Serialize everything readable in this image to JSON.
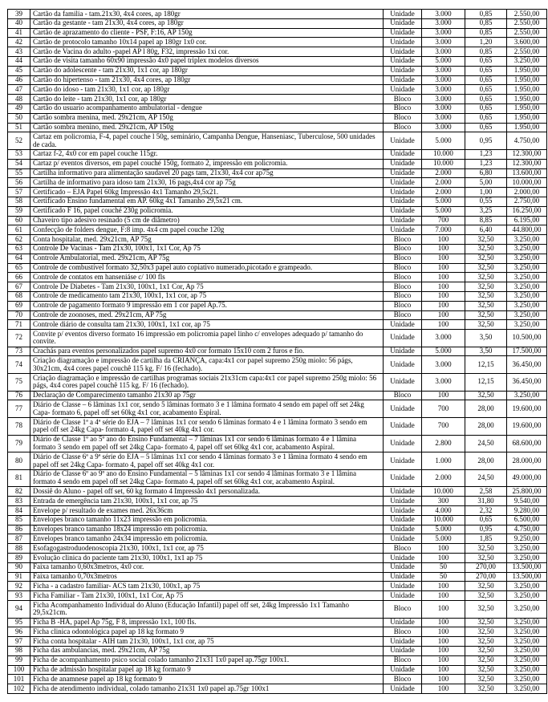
{
  "rows": [
    [
      "39",
      "Cartão da familia -  tam.21x30, 4x4 cores, ap 180gr",
      "Unidade",
      "3.000",
      "0,85",
      "2.550,00"
    ],
    [
      "40",
      "Cartão da gestante  -  tam 21x30, 4x4 cores, ap 180gr",
      "Unidade",
      "3.000",
      "0,85",
      "2.550,00"
    ],
    [
      "41",
      "Cartão de aprazamento do cliente - PSF, F:16, AP 150g",
      "Unidade",
      "3.000",
      "0,85",
      "2.550,00"
    ],
    [
      "42",
      "Cartão de protocolo tamanho 10x14 papel ap 180gr 1x0 cor.",
      "Unidade",
      "3.000",
      "1,20",
      "3.600,00"
    ],
    [
      "43",
      "Cartão de Vacina do adulto -papel AP l 80g, F32, impressão 1xi cor.",
      "Unidade",
      "3.000",
      "0,85",
      "2.550,00"
    ],
    [
      "44",
      "Cartão de visita tamanho 60x90 impressão 4x0 papel triplex  modelos diversos",
      "Unidade",
      "5.000",
      "0,65",
      "3.250,00"
    ],
    [
      "45",
      "Cartão do adolescente -  tam 21x30, 1x1 cor, ap 180gr",
      "Unidade",
      "3.000",
      "0,65",
      "1.950,00"
    ],
    [
      "46",
      "Cartão do hipertenso  -  tam 21x30, 4x4 cores, ap 180gr",
      "Unidade",
      "3.000",
      "0,65",
      "1.950,00"
    ],
    [
      "47",
      "Cartão do idoso  -  tam 21x30, 1x1 cor, ap 180gr",
      "Unidade",
      "3.000",
      "0,65",
      "1.950,00"
    ],
    [
      "48",
      "Cartão do leite  -  tam 21x30, 1x1 cor, ap 180gr",
      "Bloco",
      "3.000",
      "0,65",
      "1.950,00"
    ],
    [
      "49",
      "Cartão do usuario acompanhamento ambulatorial - dengue",
      "Bloco",
      "3.000",
      "0,65",
      "1.950,00"
    ],
    [
      "50",
      "Cartão sombra menina, med. 29x21cm, AP 150g",
      "Bloco",
      "3.000",
      "0,65",
      "1.950,00"
    ],
    [
      "51",
      "Cartão sombra menino, med. 29x21cm, AP 150g",
      "Bloco",
      "3.000",
      "0,65",
      "1.950,00"
    ],
    [
      "52",
      "Cartaz em policromia, F-4, papel couche l 50g, seminário, Campanha Dengue, Hanseniasc, Tuberculose, 500 unidades de cada.",
      "Unidade",
      "5.000",
      "0,95",
      "4.750,00"
    ],
    [
      "53",
      "Cartaz f-2, 4x0 cor em papel couche 115gr.",
      "Unidade",
      "10.000",
      "1,23",
      "12.300,00"
    ],
    [
      "54",
      "Cartaz p/ eventos diversos, em papel couché 150g, formato 2, impressão em policromia.",
      "Unidade",
      "10.000",
      "1,23",
      "12.300,00"
    ],
    [
      "55",
      "Cartilha  informativo para alimentação saudavel 20 pags tam, 21x30, 4x4 cor ap75g",
      "Unidade",
      "2.000",
      "6,80",
      "13.600,00"
    ],
    [
      "56",
      "Cartilha de informativo para idoso tam 21x30, 16 pags,4x4 cor ap 75g",
      "Unidade",
      "2.000",
      "5,00",
      "10.000,00"
    ],
    [
      "57",
      "Certificado – EJA Papel 60kg Impressão 4x1 Tamanho 29,5x21.",
      "Unidade",
      "2.000",
      "1,00",
      "2.000,00"
    ],
    [
      "58",
      "Certificado Ensino fundamental em AP. 60kg 4x1 Tamanho 29,5x21 cm.",
      "Unidade",
      "5.000",
      "0,55",
      "2.750,00"
    ],
    [
      "59",
      "Certificado F 16, papel couché 230g policromia.",
      "Unidade",
      "5.000",
      "3,25",
      "16.250,00"
    ],
    [
      "60",
      "Chaveiro tipo adesivo resinado (5 cm de diâmetro)",
      "Unidade",
      "700",
      "8,85",
      "6.195,00"
    ],
    [
      "61",
      "Confecção de folders dengue, F:8 imp. 4x4 cm papel couche 120g",
      "Unidade",
      "7.000",
      "6,40",
      "44.800,00"
    ],
    [
      "62",
      "Conta hospitalar, med. 29x21cm, AP 75g",
      "Bloco",
      "100",
      "32,50",
      "3.250,00"
    ],
    [
      "63",
      "Controle   De  Vacinas - Tam 21x30, 100x1, 1x1 Cor, Ap 75",
      "Bloco",
      "100",
      "32,50",
      "3.250,00"
    ],
    [
      "64",
      "Controle Ambulatorial, med. 29x21cm, AP 75g",
      "Bloco",
      "100",
      "32,50",
      "3.250,00"
    ],
    [
      "65",
      "Controle de combustível formato 32,50x3  papel auto copiativo numerado,picotado e grampeado.",
      "Bloco",
      "100",
      "32,50",
      "3.250,00"
    ],
    [
      "66",
      "Controle de contatos em hanseniáse c/ 100 fls",
      "Bloco",
      "100",
      "32,50",
      "3.250,00"
    ],
    [
      "67",
      "Controle De Diabetes  -  Tam 21x30, 100x1, 1x1 Cor, Ap 75",
      "Bloco",
      "100",
      "32,50",
      "3.250,00"
    ],
    [
      "68",
      "Controle de medicamento tam 21x30, 100x1, 1x1 cor, ap 75",
      "Bloco",
      "100",
      "32,50",
      "3.250,00"
    ],
    [
      "69",
      "Controle de pagamento formato 9 impressão em 1 cor papel Ap.75.",
      "Bloco",
      "100",
      "32,50",
      "3.250,00"
    ],
    [
      "70",
      "Controle de zoonoses, med. 29x21cm, AP 75g",
      "Bloco",
      "100",
      "32,50",
      "3.250,00"
    ],
    [
      "71",
      "Controle diário de consulta tam 21x30, 100x1, 1x1 cor, ap 75",
      "Unidade",
      "100",
      "32,50",
      "3.250,00"
    ],
    [
      "72",
      "Convite p/ eventos diverso formato 16 impressão em policromia papel linho c/ envelopes adequado p/ tamanho do convite.",
      "Unidade",
      "3.000",
      "3,50",
      "10.500,00"
    ],
    [
      "73",
      "Crachás para eventos personalizados papel supremo 4x0 cor formato 15x10 com 2 furos e fio.",
      "Unidade",
      "5.000",
      "3,50",
      "17.500,00"
    ],
    [
      "74",
      "Criação diagramação e impressão  de cartilha da CRIANÇA, capa:4x1 cor papel supremo 250g miolo: 56 págs, 30x21cm, 4x4 cores papel couchê 115 kg. F/ 16 (fechado).",
      "Unidade",
      "3.000",
      "12,15",
      "36.450,00"
    ],
    [
      "75",
      "Criação diagramação e impressão de cartilhas  programas sociais 21x31cm capa:4x1 cor papel supremo 250g miolo: 56 págs, 4x4 cores papel couchê 115 kg. F/ 16 (fechado).",
      "Unidade",
      "3.000",
      "12,15",
      "36.450,00"
    ],
    [
      "76",
      "Declaração de Comparecimento tamanho 21x30 ap 75gr",
      "Bloco",
      "100",
      "32,50",
      "3.250,00"
    ],
    [
      "77",
      "Diário de Classe – 6 lâminas 1x1 cor, sendo 5 lâminas formato 3 e 1 lâmina formato 4 sendo em papel off set 24kg Capa- formato 6, papel off set 60kg 4x1 cor, acabamento Espiral.",
      "Unidade",
      "700",
      "28,00",
      "19.600,00"
    ],
    [
      "78",
      "Diário de Classe 1ª a 4ª série do EJA – 7 lâminas 1x1 cor sendo 6 lâminas formato 4 e 1 lâmina formato 3 sendo em papel off set 24kg Capa- formato 4, papel off set 40kg 4x1 cor.",
      "Unidade",
      "700",
      "28,00",
      "19.600,00"
    ],
    [
      "79",
      "Diário de Classe 1º ao 5º ano do Ensino Fundamental – 7 lâminas 1x1 cor sendo 6 lâminas formato 4 e 1 lâmina formato 3 sendo em papel off set 24kg Capa- formato 4, papel off set 60kg 4x1 cor, acabamento Aspiral.",
      "Unidade",
      "2.800",
      "24,50",
      "68.600,00"
    ],
    [
      "80",
      "Diário de Classe 6ª a 9ª série do EJA – 5 lâminas 1x1 cor sendo 4 lâminas formato 3 e 1 lâmina formato 4 sendo em papel off set 24kg Capa- formato 4, papel off set 40kg 4x1 cor.",
      "Unidade",
      "1.000",
      "28,00",
      "28.000,00"
    ],
    [
      "81",
      "Diário de Classe 6º ao 9º ano do Ensino Fundamental – 5 lâminas 1x1 cor sendo 4 lâminas formato 3 e 1 lâmina formato 4 sendo em papel off set 24kg Capa- formato 4, papel off set 60kg 4x1 cor, acabamento Aspiral.",
      "Unidade",
      "2.000",
      "24,50",
      "49.000,00"
    ],
    [
      "82",
      "Dossiê do Aluno - papel off set, 60 kg formato 4 Impressão 4x1  personalizada.",
      "Unidade",
      "10.000",
      "2,58",
      "25.800,00"
    ],
    [
      "83",
      "Entrada de emergência tam 21x30, 100x1, 1x1 cor, ap 75",
      "Unidade",
      "300",
      "31,80",
      "9.540,00"
    ],
    [
      "84",
      "Envelope p/ resultado de exames med. 26x36cm",
      "Unidade",
      "4.000",
      "2,32",
      "9.280,00"
    ],
    [
      "85",
      "Envelopes branco tamanho 11x23 impressão em policromia.",
      "Unidade",
      "10.000",
      "0,65",
      "6.500,00"
    ],
    [
      "86",
      "Envelopes branco tamanho 18x24 impressão em policromia.",
      "Unidade",
      "5.000",
      "0,95",
      "4.750,00"
    ],
    [
      "87",
      "Envelopes branco tamanho 24x34 impressão em policromia.",
      "Unidade",
      "5.000",
      "1,85",
      "9.250,00"
    ],
    [
      "88",
      "Esofagogastroduodenoscopia 21x30, 100x1, 1x1 cor, ap 75",
      "Bloco",
      "100",
      "32,50",
      "3.250,00"
    ],
    [
      "89",
      "Evolução clinica do paciente tam 21x30, 100x1, 1x1 ap 75",
      "Unidade",
      "100",
      "32,50",
      "3.250,00"
    ],
    [
      "90",
      "Faixa tamanho 0,60x3metros, 4x0 cor.",
      "Unidade",
      "50",
      "270,00",
      "13.500,00"
    ],
    [
      "91",
      "Faixa tamanho 0,70x3metros",
      "Unidade",
      "50",
      "270,00",
      "13.500,00"
    ],
    [
      "92",
      "Ficha - a cadastro familiar- ACS tam 21x30, 100x1, ap 75",
      "Unidade",
      "100",
      "32,50",
      "3.250,00"
    ],
    [
      "93",
      "Ficha  Familiar -  Tam 21x30, 100x1, 1x1 Cor, Ap 75",
      "Unidade",
      "100",
      "32,50",
      "3.250,00"
    ],
    [
      "94",
      "Ficha Acompanhamento Individual do Aluno (Educação Infantil) papel off set, 24kg Impressão 1x1 Tamanho 29,5x21cm.",
      "Bloco",
      "100",
      "32,50",
      "3.250,00"
    ],
    [
      "95",
      "Ficha B -HA, papel Ap 75g, F 8, impressão 1x1,  100 fls.",
      "Unidade",
      "100",
      "32,50",
      "3.250,00"
    ],
    [
      "96",
      "Ficha clinica odontológica papel ap 18 kg formato 9",
      "Bloco",
      "100",
      "32,50",
      "3.250,00"
    ],
    [
      "97",
      "Ficha conta hospitalar - AIH tam 21x30, 100x1, 1x1 cor, ap 75",
      "Unidade",
      "100",
      "32,50",
      "3.250,00"
    ],
    [
      "98",
      "Ficha das ambulancias, med. 29x21cm, AP 75g",
      "Unidade",
      "100",
      "32,50",
      "3.250,00"
    ],
    [
      "99",
      "Ficha de acompanhamento psico social colado tamanho 21x31  1x0 papel ap.75gr 100x1.",
      "Bloco",
      "100",
      "32,50",
      "3.250,00"
    ],
    [
      "100",
      "Ficha de admissão hospitalar papel ap 18 kg formato 9",
      "Unidade",
      "100",
      "32,50",
      "3.250,00"
    ],
    [
      "101",
      "Ficha de anamnese papel ap 18 kg formato 9",
      "Bloco",
      "100",
      "32,50",
      "3.250,00"
    ],
    [
      "102",
      "Ficha de atendimento individual, colado tamanho 21x31 1x0 papel ap.75gr 100x1",
      "Unidade",
      "100",
      "32,50",
      "3.250,00"
    ]
  ]
}
